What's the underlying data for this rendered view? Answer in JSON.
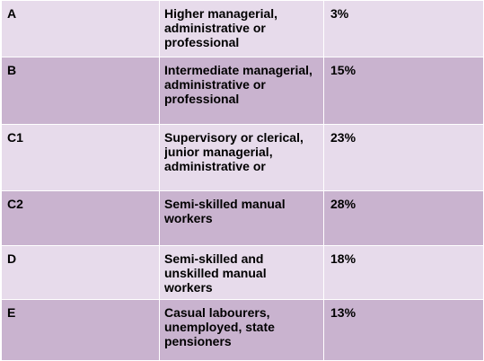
{
  "table": {
    "rows": [
      {
        "grade": "A",
        "description": "Higher managerial, administrative or professional",
        "percentage": "3%"
      },
      {
        "grade": "B",
        "description": "Intermediate managerial, administrative or professional",
        "percentage": "15%"
      },
      {
        "grade": "C1",
        "description": "Supervisory or clerical, junior managerial, administrative or",
        "percentage": "23%"
      },
      {
        "grade": "C2",
        "description": "Semi-skilled manual workers",
        "percentage": "28%"
      },
      {
        "grade": "D",
        "description": "Semi-skilled and unskilled manual workers",
        "percentage": "18%"
      },
      {
        "grade": "E",
        "description": "Casual labourers, unemployed, state pensioners",
        "percentage": "13%"
      }
    ]
  },
  "colors": {
    "light_row": "#e7dbeb",
    "dark_row": "#c9b3cf",
    "border": "#ffffff"
  }
}
